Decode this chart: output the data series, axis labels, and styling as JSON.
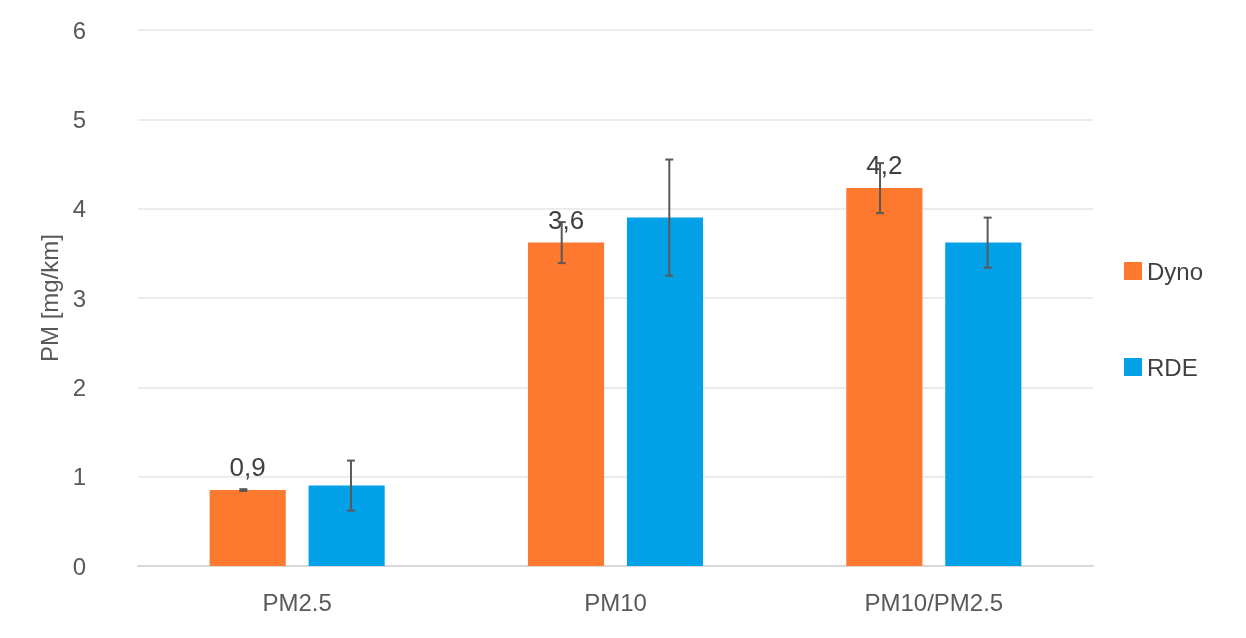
{
  "chart_data": {
    "type": "bar",
    "ylabel": "PM [mg/km]",
    "categories": [
      "PM2.5",
      "PM10",
      "PM10/PM2.5"
    ],
    "series": [
      {
        "name": "Dyno",
        "color": "#fe7930",
        "values": [
          0.85,
          3.62,
          4.23
        ],
        "errors": [
          0.01,
          0.23,
          0.28
        ],
        "value_labels": [
          "0,9",
          "3,6",
          "4,2"
        ]
      },
      {
        "name": "RDE",
        "color": "#02a0e6",
        "values": [
          0.9,
          3.9,
          3.62
        ],
        "errors": [
          0.28,
          0.65,
          0.28
        ]
      }
    ],
    "ylim": [
      0,
      6
    ],
    "yticks": [
      0,
      1,
      2,
      3,
      4,
      5,
      6
    ],
    "grid": "y",
    "legend": "right"
  }
}
